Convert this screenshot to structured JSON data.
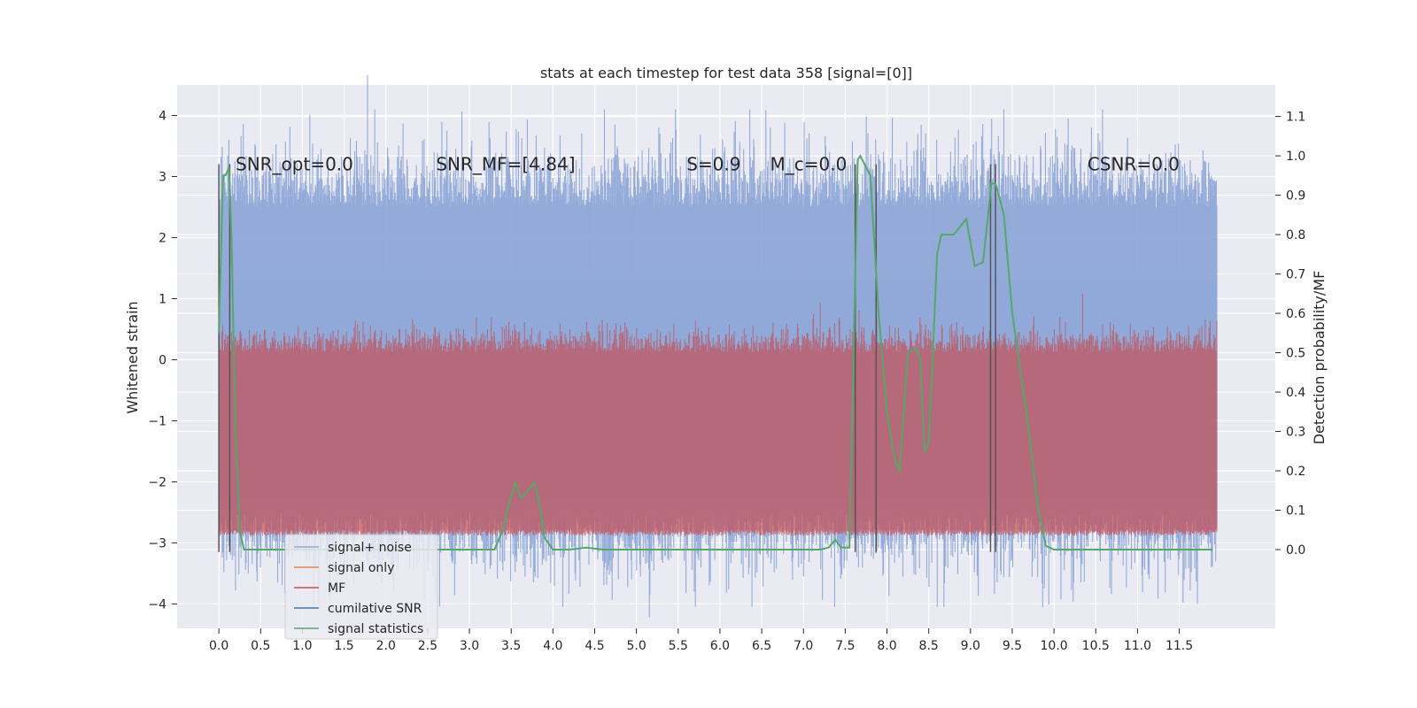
{
  "chart_data": {
    "type": "line",
    "title": "stats at each timestep for test data 358 [signal=[0]]",
    "ylabel": "Whitened strain",
    "y2label": "Detection probability/MF",
    "xlim": [
      -0.5,
      12.65
    ],
    "ylim": [
      -4.4,
      4.5
    ],
    "y2lim": [
      -0.2,
      1.18
    ],
    "x_ticks": [
      0.0,
      0.5,
      1.0,
      1.5,
      2.0,
      2.5,
      3.0,
      3.5,
      4.0,
      4.5,
      5.0,
      5.5,
      6.0,
      6.5,
      7.0,
      7.5,
      8.0,
      8.5,
      9.0,
      9.5,
      10.0,
      10.5,
      11.0,
      11.5
    ],
    "y_ticks": [
      4,
      3,
      2,
      1,
      0,
      -1,
      -2,
      -3,
      -4
    ],
    "y_tick_labels": [
      "4",
      "3",
      "2",
      "1",
      "0",
      "−1",
      "−2",
      "−3",
      "−4"
    ],
    "y2_ticks": [
      1.1,
      1.0,
      0.9,
      0.8,
      0.7,
      0.6,
      0.5,
      0.4,
      0.3,
      0.2,
      0.1,
      0.0
    ],
    "y2_tick_labels": [
      "1.1",
      "1.0",
      "0.9",
      "0.8",
      "0.7",
      "0.6",
      "0.5",
      "0.4",
      "0.3",
      "0.2",
      "0.1",
      "0.0"
    ],
    "grid": true,
    "legend_placement": "lower-left",
    "annotations": [
      {
        "text": "SNR_opt=0.0",
        "x": 0.2,
        "y": 3.2
      },
      {
        "text": "SNR_MF=[4.84]",
        "x": 2.6,
        "y": 3.2
      },
      {
        "text": "S=0.9",
        "x": 5.6,
        "y": 3.2
      },
      {
        "text": "M_c=0.0",
        "x": 6.6,
        "y": 3.2
      },
      {
        "text": "CSNR=0.0",
        "x": 10.4,
        "y": 3.2
      }
    ],
    "vertical_lines_x": [
      0.0,
      0.13,
      7.62,
      7.87,
      9.24,
      9.3
    ],
    "vertical_lines_yrange": [
      -3.15,
      3.2
    ],
    "series": [
      {
        "name": "signal+ noise",
        "color": "#8fa8d8",
        "style": "noise band",
        "t_range": [
          0.0,
          11.95
        ],
        "envelope_low": -2.5,
        "envelope_high": 2.5,
        "peak_max": 4.1,
        "peak_min": -4.05
      },
      {
        "name": "signal only",
        "color": "#dd8452",
        "values": []
      },
      {
        "name": "MF",
        "color": "#c44e52",
        "style": "noise band",
        "t_range": [
          0.0,
          11.95
        ],
        "envelope_low": 0.05,
        "envelope_high": 0.55,
        "peak_max": 0.65
      },
      {
        "name": "cumilative SNR",
        "color": "#4c72b0",
        "values": []
      },
      {
        "name": "signal statistics",
        "color": "#55a868",
        "axis": "right",
        "x": [
          0.0,
          0.05,
          0.08,
          0.12,
          0.15,
          0.2,
          0.25,
          0.3,
          0.5,
          1.0,
          1.5,
          2.0,
          2.5,
          3.0,
          3.3,
          3.4,
          3.48,
          3.55,
          3.62,
          3.7,
          3.78,
          3.85,
          3.9,
          4.0,
          4.2,
          4.4,
          4.6,
          5.0,
          6.0,
          6.5,
          7.0,
          7.2,
          7.3,
          7.38,
          7.45,
          7.55,
          7.6,
          7.65,
          7.68,
          7.8,
          7.9,
          8.0,
          8.1,
          8.15,
          8.25,
          8.35,
          8.4,
          8.45,
          8.5,
          8.55,
          8.6,
          8.65,
          8.8,
          8.95,
          9.05,
          9.15,
          9.2,
          9.25,
          9.3,
          9.4,
          9.5,
          9.6,
          9.7,
          9.8,
          9.9,
          10.0,
          10.5,
          11.0,
          11.2,
          11.9
        ],
        "values": [
          0.55,
          0.95,
          0.95,
          0.97,
          0.8,
          0.3,
          0.05,
          0.0,
          0.0,
          0.0,
          0.0,
          0.0,
          0.0,
          0.0,
          0.0,
          0.05,
          0.12,
          0.17,
          0.13,
          0.15,
          0.17,
          0.1,
          0.03,
          0.0,
          0.0,
          0.005,
          0.0,
          0.0,
          0.0,
          0.0,
          0.0,
          0.0,
          0.005,
          0.025,
          0.005,
          0.005,
          0.5,
          0.99,
          1.0,
          0.95,
          0.6,
          0.35,
          0.22,
          0.2,
          0.5,
          0.51,
          0.48,
          0.25,
          0.27,
          0.5,
          0.75,
          0.8,
          0.8,
          0.84,
          0.72,
          0.73,
          0.83,
          0.93,
          0.93,
          0.85,
          0.6,
          0.45,
          0.3,
          0.12,
          0.01,
          0.0,
          0.0,
          0.0,
          0.0,
          0.0
        ]
      }
    ]
  }
}
